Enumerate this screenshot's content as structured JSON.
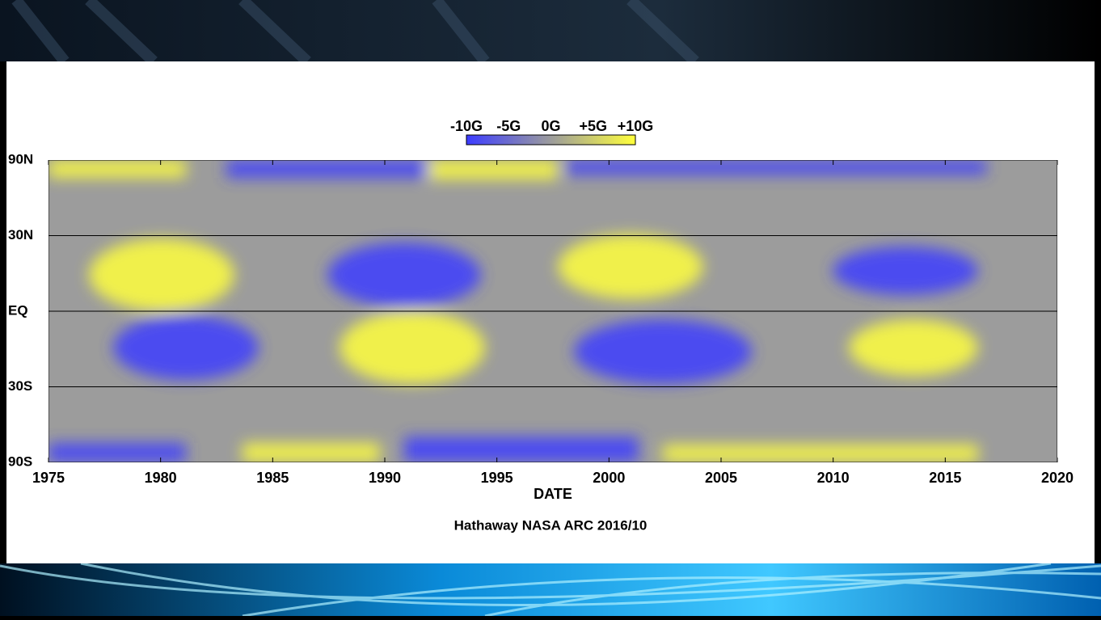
{
  "chart_data": {
    "type": "heatmap",
    "subtitle": "Hathaway NASA ARC 2016/10",
    "x_label": "DATE",
    "xlim": [
      1975,
      2020
    ],
    "xticks": [
      1975,
      1980,
      1985,
      1990,
      1995,
      2000,
      2005,
      2010,
      2015,
      2020
    ],
    "ylim": [
      -90,
      90
    ],
    "y_scale": "sine",
    "yticks": [
      {
        "value": 90,
        "label": "90N"
      },
      {
        "value": 30,
        "label": "30N"
      },
      {
        "value": 0,
        "label": "EQ"
      },
      {
        "value": -30,
        "label": "30S"
      },
      {
        "value": -90,
        "label": "90S"
      }
    ],
    "grid": true,
    "colorbar": {
      "lim": [
        -10,
        10
      ],
      "colors": [
        "#3c3cff",
        "#9c9c9c",
        "#ffff3c"
      ],
      "ticks": [
        {
          "value": -10,
          "label": "-10G"
        },
        {
          "value": -5,
          "label": "-5G"
        },
        {
          "value": 0,
          "label": "0G"
        },
        {
          "value": 5,
          "label": "+5G"
        },
        {
          "value": 10,
          "label": "+10G"
        }
      ]
    }
  }
}
